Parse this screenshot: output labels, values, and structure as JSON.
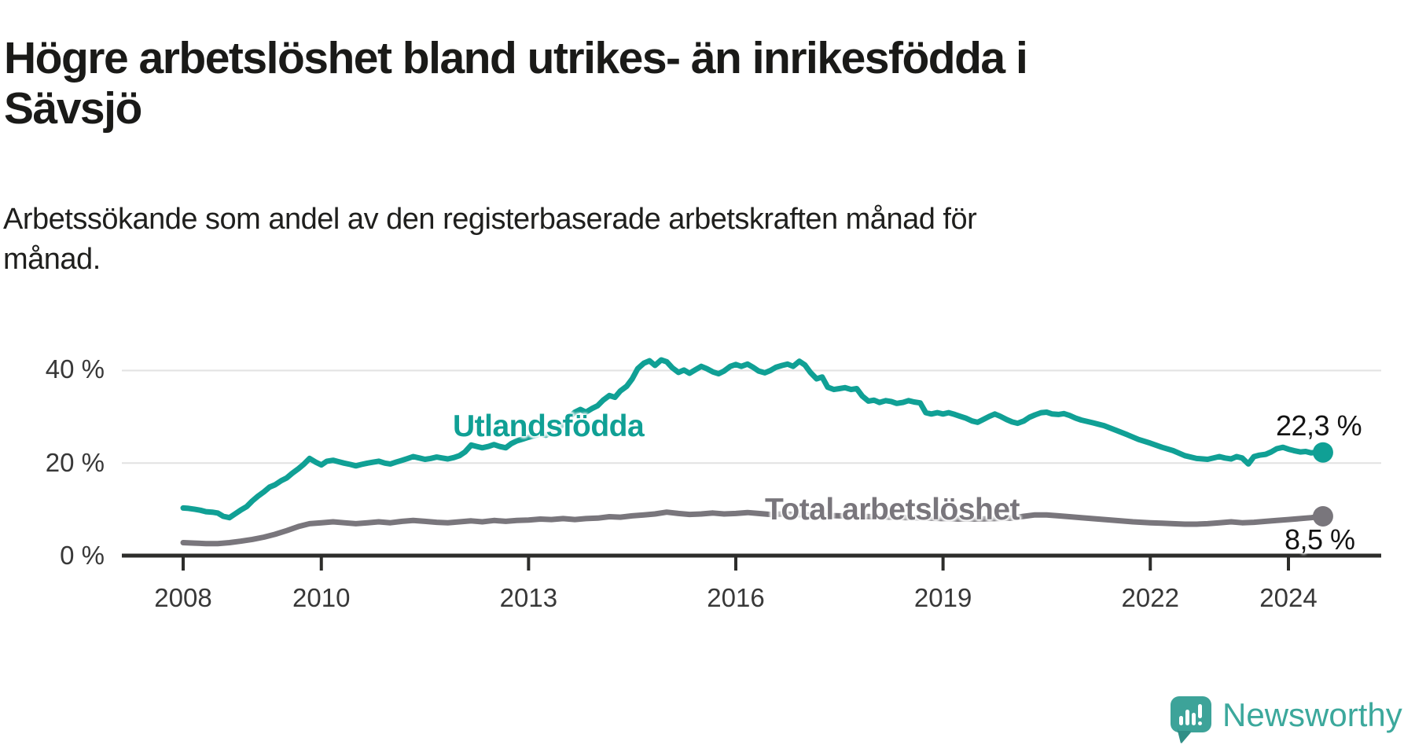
{
  "header": {
    "title_lines": [
      "Högre arbetslöshet bland utrikes- än inrikesfödda i",
      "Sävsjö"
    ],
    "subtitle_lines": [
      "Arbetssökande som andel av den registerbaserade arbetskraften månad för",
      "månad."
    ]
  },
  "chart_data": {
    "type": "line",
    "title": "Högre arbetslöshet bland utrikes- än inrikesfödda i Sävsjö",
    "subtitle": "Arbetssökande som andel av den registerbaserade arbetskraften månad för månad.",
    "unit": "%",
    "grid": "horizontal-only",
    "legend_position": "inline-labels",
    "x_axis": {
      "tick_years": [
        2008,
        2010,
        2013,
        2016,
        2019,
        2022,
        2024
      ],
      "tick_labels": [
        "2008",
        "2010",
        "2013",
        "2016",
        "2019",
        "2022",
        "2024"
      ],
      "range": [
        2008,
        2024.6
      ]
    },
    "y_axis": {
      "ticks": [
        {
          "value": 0,
          "label": "0 %"
        },
        {
          "value": 20,
          "label": "20 %"
        },
        {
          "value": 40,
          "label": "40 %"
        }
      ],
      "gridlines": [
        20,
        40
      ],
      "range": [
        0,
        45
      ]
    },
    "series": [
      {
        "name": "Utlandsfödda",
        "color": "#10A095",
        "end_label": "22,3 %",
        "end_value": 22.3,
        "points": [
          [
            2008.0,
            10.3
          ],
          [
            2008.08,
            10.2
          ],
          [
            2008.17,
            10.0
          ],
          [
            2008.25,
            9.8
          ],
          [
            2008.33,
            9.5
          ],
          [
            2008.42,
            9.4
          ],
          [
            2008.5,
            9.2
          ],
          [
            2008.58,
            8.5
          ],
          [
            2008.67,
            8.2
          ],
          [
            2008.75,
            9.0
          ],
          [
            2008.83,
            9.8
          ],
          [
            2008.92,
            10.6
          ],
          [
            2009.0,
            11.8
          ],
          [
            2009.08,
            12.8
          ],
          [
            2009.17,
            13.8
          ],
          [
            2009.25,
            14.8
          ],
          [
            2009.33,
            15.3
          ],
          [
            2009.42,
            16.2
          ],
          [
            2009.5,
            16.8
          ],
          [
            2009.58,
            17.8
          ],
          [
            2009.67,
            18.8
          ],
          [
            2009.75,
            19.8
          ],
          [
            2009.83,
            21.0
          ],
          [
            2009.92,
            20.2
          ],
          [
            2010.0,
            19.6
          ],
          [
            2010.08,
            20.4
          ],
          [
            2010.17,
            20.6
          ],
          [
            2010.25,
            20.3
          ],
          [
            2010.33,
            20.0
          ],
          [
            2010.42,
            19.7
          ],
          [
            2010.5,
            19.4
          ],
          [
            2010.58,
            19.7
          ],
          [
            2010.67,
            20.0
          ],
          [
            2010.75,
            20.2
          ],
          [
            2010.83,
            20.4
          ],
          [
            2010.92,
            20.0
          ],
          [
            2011.0,
            19.8
          ],
          [
            2011.08,
            20.2
          ],
          [
            2011.17,
            20.6
          ],
          [
            2011.25,
            21.0
          ],
          [
            2011.33,
            21.4
          ],
          [
            2011.42,
            21.1
          ],
          [
            2011.5,
            20.8
          ],
          [
            2011.58,
            21.0
          ],
          [
            2011.67,
            21.3
          ],
          [
            2011.75,
            21.1
          ],
          [
            2011.83,
            20.9
          ],
          [
            2011.92,
            21.2
          ],
          [
            2012.0,
            21.6
          ],
          [
            2012.08,
            22.4
          ],
          [
            2012.17,
            23.9
          ],
          [
            2012.25,
            23.6
          ],
          [
            2012.33,
            23.3
          ],
          [
            2012.42,
            23.6
          ],
          [
            2012.5,
            24.0
          ],
          [
            2012.58,
            23.6
          ],
          [
            2012.67,
            23.3
          ],
          [
            2012.75,
            24.2
          ],
          [
            2012.83,
            24.8
          ],
          [
            2012.92,
            25.2
          ],
          [
            2013.0,
            25.6
          ],
          [
            2013.08,
            25.9
          ],
          [
            2013.17,
            26.3
          ],
          [
            2013.25,
            26.0
          ],
          [
            2013.33,
            26.6
          ],
          [
            2013.42,
            27.4
          ],
          [
            2013.5,
            28.4
          ],
          [
            2013.58,
            29.8
          ],
          [
            2013.67,
            31.0
          ],
          [
            2013.75,
            31.6
          ],
          [
            2013.83,
            31.0
          ],
          [
            2013.92,
            31.8
          ],
          [
            2014.0,
            32.4
          ],
          [
            2014.08,
            33.6
          ],
          [
            2014.17,
            34.6
          ],
          [
            2014.25,
            34.2
          ],
          [
            2014.33,
            35.6
          ],
          [
            2014.42,
            36.6
          ],
          [
            2014.5,
            38.2
          ],
          [
            2014.58,
            40.4
          ],
          [
            2014.67,
            41.6
          ],
          [
            2014.75,
            42.1
          ],
          [
            2014.83,
            41.1
          ],
          [
            2014.92,
            42.3
          ],
          [
            2015.0,
            41.9
          ],
          [
            2015.08,
            40.6
          ],
          [
            2015.17,
            39.6
          ],
          [
            2015.25,
            40.1
          ],
          [
            2015.33,
            39.4
          ],
          [
            2015.42,
            40.2
          ],
          [
            2015.5,
            40.9
          ],
          [
            2015.58,
            40.4
          ],
          [
            2015.67,
            39.7
          ],
          [
            2015.75,
            39.3
          ],
          [
            2015.83,
            39.9
          ],
          [
            2015.92,
            40.9
          ],
          [
            2016.0,
            41.3
          ],
          [
            2016.08,
            40.9
          ],
          [
            2016.17,
            41.4
          ],
          [
            2016.25,
            40.7
          ],
          [
            2016.33,
            39.9
          ],
          [
            2016.42,
            39.5
          ],
          [
            2016.5,
            40.0
          ],
          [
            2016.58,
            40.7
          ],
          [
            2016.67,
            41.1
          ],
          [
            2016.75,
            41.4
          ],
          [
            2016.83,
            40.9
          ],
          [
            2016.92,
            42.0
          ],
          [
            2017.0,
            41.2
          ],
          [
            2017.08,
            39.6
          ],
          [
            2017.17,
            38.2
          ],
          [
            2017.25,
            38.6
          ],
          [
            2017.33,
            36.4
          ],
          [
            2017.42,
            35.9
          ],
          [
            2017.5,
            36.1
          ],
          [
            2017.58,
            36.3
          ],
          [
            2017.67,
            35.9
          ],
          [
            2017.75,
            36.1
          ],
          [
            2017.83,
            34.5
          ],
          [
            2017.92,
            33.4
          ],
          [
            2018.0,
            33.6
          ],
          [
            2018.08,
            33.1
          ],
          [
            2018.17,
            33.5
          ],
          [
            2018.25,
            33.3
          ],
          [
            2018.33,
            32.9
          ],
          [
            2018.42,
            33.1
          ],
          [
            2018.5,
            33.5
          ],
          [
            2018.58,
            33.2
          ],
          [
            2018.67,
            33.0
          ],
          [
            2018.75,
            30.9
          ],
          [
            2018.83,
            30.6
          ],
          [
            2018.92,
            30.9
          ],
          [
            2019.0,
            30.6
          ],
          [
            2019.08,
            30.9
          ],
          [
            2019.17,
            30.5
          ],
          [
            2019.25,
            30.1
          ],
          [
            2019.33,
            29.7
          ],
          [
            2019.42,
            29.1
          ],
          [
            2019.5,
            28.8
          ],
          [
            2019.58,
            29.4
          ],
          [
            2019.67,
            30.1
          ],
          [
            2019.75,
            30.6
          ],
          [
            2019.83,
            30.1
          ],
          [
            2019.92,
            29.4
          ],
          [
            2020.0,
            28.9
          ],
          [
            2020.08,
            28.6
          ],
          [
            2020.17,
            29.1
          ],
          [
            2020.25,
            29.9
          ],
          [
            2020.33,
            30.4
          ],
          [
            2020.42,
            30.9
          ],
          [
            2020.5,
            31.0
          ],
          [
            2020.58,
            30.6
          ],
          [
            2020.67,
            30.5
          ],
          [
            2020.75,
            30.7
          ],
          [
            2020.83,
            30.3
          ],
          [
            2020.92,
            29.7
          ],
          [
            2021.0,
            29.3
          ],
          [
            2021.17,
            28.7
          ],
          [
            2021.33,
            28.1
          ],
          [
            2021.5,
            27.1
          ],
          [
            2021.67,
            26.1
          ],
          [
            2021.83,
            25.1
          ],
          [
            2022.0,
            24.3
          ],
          [
            2022.17,
            23.4
          ],
          [
            2022.33,
            22.7
          ],
          [
            2022.5,
            21.6
          ],
          [
            2022.67,
            21.0
          ],
          [
            2022.83,
            20.8
          ],
          [
            2023.0,
            21.4
          ],
          [
            2023.08,
            21.1
          ],
          [
            2023.17,
            20.9
          ],
          [
            2023.25,
            21.4
          ],
          [
            2023.33,
            21.1
          ],
          [
            2023.42,
            19.8
          ],
          [
            2023.5,
            21.4
          ],
          [
            2023.58,
            21.7
          ],
          [
            2023.67,
            21.9
          ],
          [
            2023.75,
            22.4
          ],
          [
            2023.83,
            23.1
          ],
          [
            2023.92,
            23.4
          ],
          [
            2024.0,
            23.0
          ],
          [
            2024.08,
            22.7
          ],
          [
            2024.17,
            22.4
          ],
          [
            2024.25,
            22.5
          ],
          [
            2024.33,
            22.2
          ],
          [
            2024.42,
            22.4
          ],
          [
            2024.5,
            22.3
          ]
        ]
      },
      {
        "name": "Total arbetslöshet",
        "color": "#79767C",
        "end_label": "8,5 %",
        "end_value": 8.5,
        "points": [
          [
            2008.0,
            2.8
          ],
          [
            2008.17,
            2.7
          ],
          [
            2008.33,
            2.6
          ],
          [
            2008.5,
            2.6
          ],
          [
            2008.67,
            2.8
          ],
          [
            2008.83,
            3.1
          ],
          [
            2009.0,
            3.5
          ],
          [
            2009.17,
            4.0
          ],
          [
            2009.33,
            4.6
          ],
          [
            2009.5,
            5.4
          ],
          [
            2009.67,
            6.3
          ],
          [
            2009.83,
            6.9
          ],
          [
            2010.0,
            7.1
          ],
          [
            2010.17,
            7.3
          ],
          [
            2010.33,
            7.1
          ],
          [
            2010.5,
            6.9
          ],
          [
            2010.67,
            7.1
          ],
          [
            2010.83,
            7.3
          ],
          [
            2011.0,
            7.1
          ],
          [
            2011.17,
            7.4
          ],
          [
            2011.33,
            7.6
          ],
          [
            2011.5,
            7.4
          ],
          [
            2011.67,
            7.2
          ],
          [
            2011.83,
            7.1
          ],
          [
            2012.0,
            7.3
          ],
          [
            2012.17,
            7.5
          ],
          [
            2012.33,
            7.3
          ],
          [
            2012.5,
            7.6
          ],
          [
            2012.67,
            7.4
          ],
          [
            2012.83,
            7.6
          ],
          [
            2013.0,
            7.7
          ],
          [
            2013.17,
            7.9
          ],
          [
            2013.33,
            7.8
          ],
          [
            2013.5,
            8.0
          ],
          [
            2013.67,
            7.8
          ],
          [
            2013.83,
            8.0
          ],
          [
            2014.0,
            8.1
          ],
          [
            2014.17,
            8.4
          ],
          [
            2014.33,
            8.3
          ],
          [
            2014.5,
            8.6
          ],
          [
            2014.67,
            8.8
          ],
          [
            2014.83,
            9.0
          ],
          [
            2015.0,
            9.4
          ],
          [
            2015.17,
            9.1
          ],
          [
            2015.33,
            8.9
          ],
          [
            2015.5,
            9.0
          ],
          [
            2015.67,
            9.2
          ],
          [
            2015.83,
            9.0
          ],
          [
            2016.0,
            9.1
          ],
          [
            2016.17,
            9.3
          ],
          [
            2016.33,
            9.1
          ],
          [
            2016.5,
            8.9
          ],
          [
            2016.67,
            9.0
          ],
          [
            2016.83,
            8.9
          ],
          [
            2017.0,
            8.8
          ],
          [
            2017.25,
            8.7
          ],
          [
            2017.5,
            8.6
          ],
          [
            2017.75,
            8.5
          ],
          [
            2018.0,
            8.4
          ],
          [
            2018.25,
            8.3
          ],
          [
            2018.5,
            8.2
          ],
          [
            2018.75,
            8.1
          ],
          [
            2019.0,
            8.0
          ],
          [
            2019.25,
            7.9
          ],
          [
            2019.5,
            7.9
          ],
          [
            2019.75,
            8.0
          ],
          [
            2020.0,
            8.1
          ],
          [
            2020.17,
            8.5
          ],
          [
            2020.33,
            8.8
          ],
          [
            2020.5,
            8.8
          ],
          [
            2020.67,
            8.6
          ],
          [
            2020.83,
            8.4
          ],
          [
            2021.0,
            8.2
          ],
          [
            2021.25,
            7.9
          ],
          [
            2021.5,
            7.6
          ],
          [
            2021.75,
            7.3
          ],
          [
            2022.0,
            7.1
          ],
          [
            2022.17,
            7.0
          ],
          [
            2022.33,
            6.9
          ],
          [
            2022.5,
            6.8
          ],
          [
            2022.67,
            6.8
          ],
          [
            2022.83,
            6.9
          ],
          [
            2023.0,
            7.1
          ],
          [
            2023.17,
            7.3
          ],
          [
            2023.33,
            7.1
          ],
          [
            2023.5,
            7.2
          ],
          [
            2023.67,
            7.4
          ],
          [
            2023.83,
            7.6
          ],
          [
            2024.0,
            7.8
          ],
          [
            2024.17,
            8.0
          ],
          [
            2024.33,
            8.2
          ],
          [
            2024.5,
            8.5
          ]
        ]
      }
    ]
  },
  "branding": {
    "logo_text": "Newsworthy",
    "logo_icon": "bar-chart-speech-bubble-icon",
    "brand_color": "#3CA89C"
  },
  "colors": {
    "axis": "#2d2d2b",
    "gridline": "#e2e2e2",
    "tick_label": "#383838",
    "title": "#1a1a18",
    "value_label": "#141414"
  }
}
